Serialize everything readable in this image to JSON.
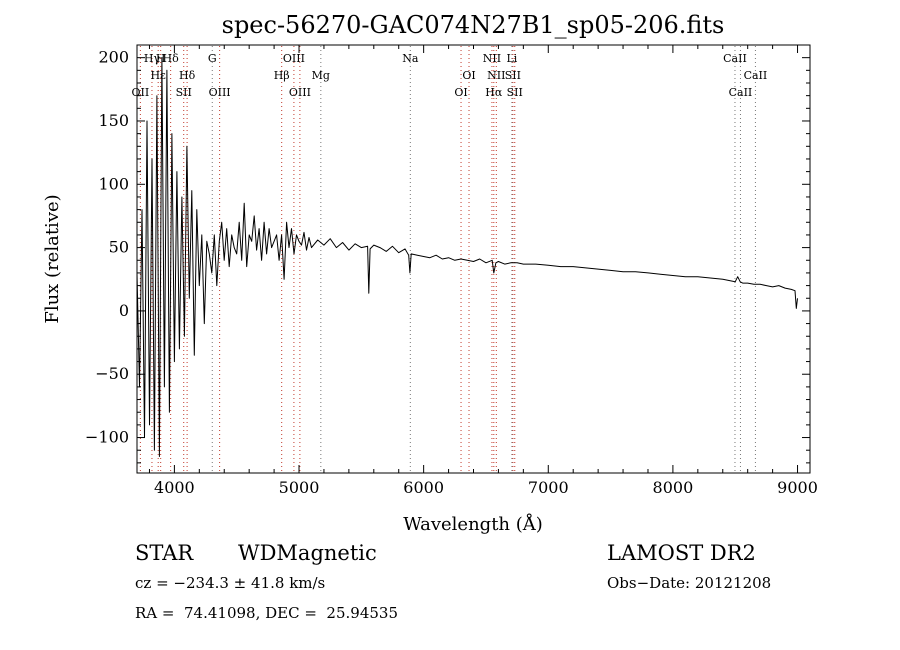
{
  "chart_data": {
    "type": "line",
    "title": "spec-56270-GAC074N27B1_sp05-206.fits",
    "xlabel": "Wavelength (Å)",
    "ylabel": "Flux (relative)",
    "xlim": [
      3700,
      9100
    ],
    "ylim": [
      -128,
      210
    ],
    "xticks": [
      4000,
      5000,
      6000,
      7000,
      8000,
      9000
    ],
    "yticks": [
      -100,
      -50,
      0,
      50,
      100,
      150,
      200
    ],
    "xtick_labels": [
      "4000",
      "5000",
      "6000",
      "7000",
      "8000",
      "9000"
    ],
    "ytick_labels": [
      "−100",
      "−50",
      "0",
      "50",
      "100",
      "150",
      "200"
    ],
    "grid": false,
    "series": [
      {
        "x": [
          3700,
          3720,
          3740,
          3760,
          3780,
          3800,
          3820,
          3840,
          3860,
          3880,
          3900,
          3920,
          3940,
          3960,
          3980,
          4000,
          4020,
          4040,
          4060,
          4080,
          4100,
          4120,
          4140,
          4160,
          4180,
          4200,
          4220,
          4240,
          4260,
          4280,
          4300,
          4320,
          4340,
          4360,
          4380,
          4400,
          4420,
          4440,
          4460,
          4480,
          4500,
          4520,
          4540,
          4560,
          4580,
          4600,
          4620,
          4640,
          4660,
          4680,
          4700,
          4720,
          4740,
          4760,
          4780,
          4800,
          4820,
          4840,
          4860,
          4880,
          4900,
          4920,
          4940,
          4960,
          4980,
          5000,
          5020,
          5040,
          5060,
          5080,
          5100,
          5150,
          5200,
          5250,
          5300,
          5350,
          5400,
          5450,
          5500,
          5550,
          5560,
          5570,
          5600,
          5650,
          5700,
          5750,
          5800,
          5850,
          5880,
          5890,
          5900,
          5950,
          6000,
          6050,
          6100,
          6150,
          6200,
          6250,
          6300,
          6350,
          6400,
          6450,
          6500,
          6550,
          6563,
          6580,
          6600,
          6650,
          6700,
          6750,
          6800,
          6900,
          7000,
          7100,
          7200,
          7300,
          7400,
          7500,
          7600,
          7700,
          7800,
          7900,
          8000,
          8100,
          8200,
          8300,
          8400,
          8450,
          8500,
          8520,
          8540,
          8560,
          8600,
          8650,
          8700,
          8750,
          8800,
          8850,
          8900,
          8950,
          8980,
          8990,
          9000
        ],
        "y": [
          30,
          -60,
          80,
          -100,
          150,
          -90,
          120,
          -110,
          170,
          -115,
          200,
          -60,
          190,
          -80,
          140,
          -40,
          110,
          -30,
          90,
          -20,
          130,
          10,
          95,
          -35,
          80,
          20,
          60,
          -10,
          55,
          45,
          30,
          60,
          20,
          55,
          70,
          40,
          65,
          35,
          60,
          50,
          45,
          70,
          40,
          85,
          35,
          60,
          55,
          75,
          48,
          65,
          40,
          70,
          45,
          65,
          50,
          55,
          60,
          40,
          60,
          25,
          70,
          50,
          65,
          45,
          60,
          55,
          52,
          62,
          48,
          58,
          50,
          56,
          52,
          57,
          50,
          54,
          48,
          53,
          50,
          51,
          14,
          49,
          52,
          50,
          47,
          51,
          46,
          49,
          44,
          30,
          45,
          44,
          43,
          42,
          44,
          41,
          42,
          40,
          41,
          40,
          39,
          41,
          38,
          40,
          30,
          38,
          39,
          37,
          38,
          38,
          37,
          37,
          36,
          35,
          35,
          34,
          33,
          32,
          31,
          31,
          30,
          29,
          28,
          27,
          27,
          26,
          25,
          24,
          23,
          27,
          23,
          22,
          22,
          21,
          21,
          20,
          19,
          20,
          18,
          17,
          16,
          2,
          10
        ]
      }
    ],
    "line_labels": [
      {
        "label": "Hγ",
        "x": 3820,
        "row": 1,
        "color": "red"
      },
      {
        "label": "H",
        "x": 3890,
        "row": 1,
        "color": "red"
      },
      {
        "label": "Hδ",
        "x": 3970,
        "row": 1,
        "color": "red"
      },
      {
        "label": "OII",
        "x": 3727,
        "row": 3,
        "color": "red"
      },
      {
        "label": "Hε",
        "x": 3870,
        "row": 2,
        "color": "red"
      },
      {
        "label": "SII",
        "x": 4075,
        "row": 3,
        "color": "red"
      },
      {
        "label": "Hδ",
        "x": 4102,
        "row": 2,
        "color": "red"
      },
      {
        "label": "G",
        "x": 4304,
        "row": 1,
        "color": "gray"
      },
      {
        "label": "OIII",
        "x": 4363,
        "row": 3,
        "color": "red"
      },
      {
        "label": "OIII",
        "x": 4959,
        "row": 1,
        "color": "red"
      },
      {
        "label": "Hβ",
        "x": 4861,
        "row": 2,
        "color": "red"
      },
      {
        "label": "OIII",
        "x": 5007,
        "row": 3,
        "color": "red"
      },
      {
        "label": "Mg",
        "x": 5175,
        "row": 2,
        "color": "gray"
      },
      {
        "label": "Na",
        "x": 5893,
        "row": 1,
        "color": "gray"
      },
      {
        "label": "OI",
        "x": 6364,
        "row": 2,
        "color": "red"
      },
      {
        "label": "OI",
        "x": 6300,
        "row": 3,
        "color": "red"
      },
      {
        "label": "NII",
        "x": 6548,
        "row": 1,
        "color": "red"
      },
      {
        "label": "Li",
        "x": 6708,
        "row": 1,
        "color": "gray"
      },
      {
        "label": "NII",
        "x": 6583,
        "row": 2,
        "color": "red"
      },
      {
        "label": "SII",
        "x": 6716,
        "row": 2,
        "color": "red"
      },
      {
        "label": "Hα",
        "x": 6563,
        "row": 3,
        "color": "red"
      },
      {
        "label": "SII",
        "x": 6731,
        "row": 3,
        "color": "red"
      },
      {
        "label": "CaII",
        "x": 8498,
        "row": 1,
        "color": "gray"
      },
      {
        "label": "CaII",
        "x": 8662,
        "row": 2,
        "color": "gray"
      },
      {
        "label": "CaII",
        "x": 8542,
        "row": 3,
        "color": "gray"
      }
    ]
  },
  "info": {
    "class_label": "STAR",
    "subclass_label": "WDMagnetic",
    "survey_label": "LAMOST DR2",
    "cz_text": "cz = −234.3 ± 41.8 km/s",
    "obs_date_text": "Obs−Date: 20121208",
    "radec_text": "RA =  74.41098, DEC =  25.94535"
  }
}
